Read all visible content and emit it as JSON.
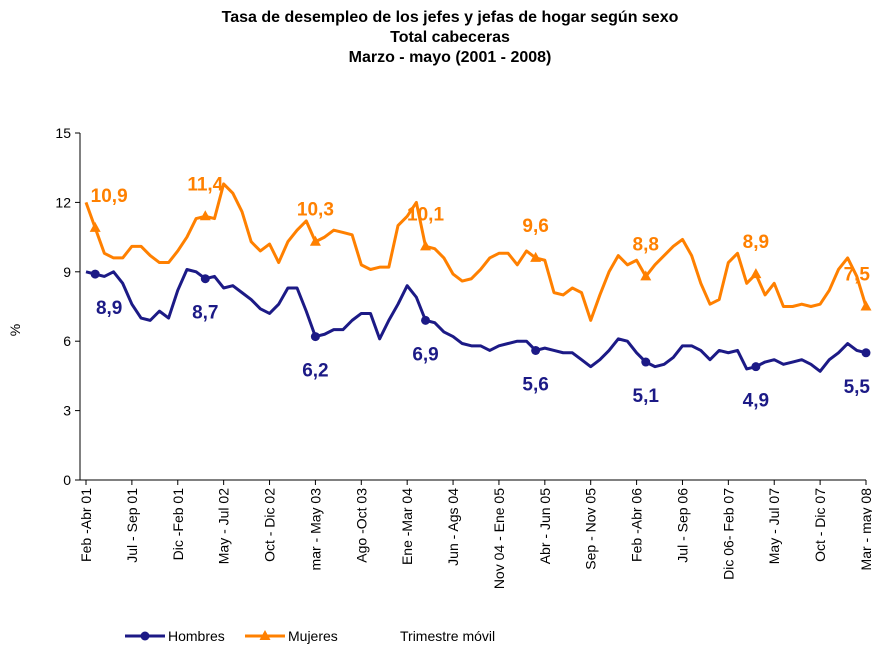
{
  "chart_data": {
    "type": "line",
    "title": [
      "Tasa de desempleo de los jefes y jefas de hogar según sexo",
      "Total cabeceras",
      "Marzo - mayo (2001 - 2008)"
    ],
    "y_label": "%",
    "x_label": "Trimestre móvil",
    "ylim": [
      0,
      15
    ],
    "yticks": [
      0,
      3,
      6,
      9,
      12,
      15
    ],
    "categories": [
      "Feb -Abr 01",
      null,
      null,
      null,
      null,
      "Jul - Sep 01",
      null,
      null,
      null,
      null,
      "Dic -Feb 01",
      null,
      null,
      null,
      null,
      "May - Jul 02",
      null,
      null,
      null,
      null,
      "Oct - Dic 02",
      null,
      null,
      null,
      null,
      "mar - May 03",
      null,
      null,
      null,
      null,
      "Ago -Oct 03",
      null,
      null,
      null,
      null,
      "Ene -Mar 04",
      null,
      null,
      null,
      null,
      "Jun - Ags 04",
      null,
      null,
      null,
      null,
      "Nov 04 - Ene 05",
      null,
      null,
      null,
      null,
      "Abr - Jun 05",
      null,
      null,
      null,
      null,
      "Sep - Nov 05",
      null,
      null,
      null,
      null,
      "Feb -Abr 06",
      null,
      null,
      null,
      null,
      "Jul - Sep 06",
      null,
      null,
      null,
      null,
      "Dic  06- Feb 07",
      null,
      null,
      null,
      null,
      "May - Jul 07",
      null,
      null,
      null,
      null,
      "Oct - Dic 07",
      null,
      null,
      null,
      null,
      "Mar - may 08"
    ],
    "series": [
      {
        "name": "Hombres",
        "color": "#1c1a86",
        "marker": "circle",
        "values": [
          9.0,
          8.9,
          8.8,
          9.0,
          8.5,
          7.6,
          7.0,
          6.9,
          7.3,
          7.0,
          8.2,
          9.1,
          9.0,
          8.7,
          8.8,
          8.3,
          8.4,
          8.1,
          7.8,
          7.4,
          7.2,
          7.6,
          8.3,
          8.3,
          7.3,
          6.2,
          6.3,
          6.5,
          6.5,
          6.9,
          7.2,
          7.2,
          6.1,
          6.9,
          7.6,
          8.4,
          7.9,
          6.9,
          6.8,
          6.4,
          6.2,
          5.9,
          5.8,
          5.8,
          5.6,
          5.8,
          5.9,
          6.0,
          6.0,
          5.6,
          5.7,
          5.6,
          5.5,
          5.5,
          5.2,
          4.9,
          5.2,
          5.6,
          6.1,
          6.0,
          5.5,
          5.1,
          4.9,
          5.0,
          5.3,
          5.8,
          5.8,
          5.6,
          5.2,
          5.6,
          5.5,
          5.6,
          4.8,
          4.9,
          5.1,
          5.2,
          5.0,
          5.1,
          5.2,
          5.0,
          4.7,
          5.2,
          5.5,
          5.9,
          5.6,
          5.5
        ],
        "value_labels": [
          null,
          "8,9",
          null,
          null,
          null,
          null,
          null,
          null,
          null,
          null,
          null,
          null,
          null,
          "8,7",
          null,
          null,
          null,
          null,
          null,
          null,
          null,
          null,
          null,
          null,
          null,
          "6,2",
          null,
          null,
          null,
          null,
          null,
          null,
          null,
          null,
          null,
          null,
          null,
          "6,9",
          null,
          null,
          null,
          null,
          null,
          null,
          null,
          null,
          null,
          null,
          null,
          "5,6",
          null,
          null,
          null,
          null,
          null,
          null,
          null,
          null,
          null,
          null,
          null,
          "5,1",
          null,
          null,
          null,
          null,
          null,
          null,
          null,
          null,
          null,
          null,
          null,
          "4,9",
          null,
          null,
          null,
          null,
          null,
          null,
          null,
          null,
          null,
          null,
          null,
          "5,5"
        ]
      },
      {
        "name": "Mujeres",
        "color": "#ff8000",
        "marker": "triangle",
        "values": [
          12.0,
          10.9,
          9.8,
          9.6,
          9.6,
          10.1,
          10.1,
          9.7,
          9.4,
          9.4,
          9.9,
          10.5,
          11.3,
          11.4,
          11.3,
          12.8,
          12.4,
          11.6,
          10.3,
          9.9,
          10.2,
          9.4,
          10.3,
          10.8,
          11.2,
          10.3,
          10.5,
          10.8,
          10.7,
          10.6,
          9.3,
          9.1,
          9.2,
          9.2,
          11.0,
          11.4,
          12.0,
          10.1,
          10.0,
          9.6,
          8.9,
          8.6,
          8.7,
          9.1,
          9.6,
          9.8,
          9.8,
          9.3,
          9.9,
          9.6,
          9.5,
          8.1,
          8.0,
          8.3,
          8.1,
          6.9,
          8.0,
          9.0,
          9.7,
          9.3,
          9.5,
          8.8,
          9.3,
          9.7,
          10.1,
          10.4,
          9.7,
          8.5,
          7.6,
          7.8,
          9.4,
          9.8,
          8.5,
          8.9,
          8.0,
          8.5,
          7.5,
          7.5,
          7.6,
          7.5,
          7.6,
          8.2,
          9.1,
          9.6,
          8.8,
          7.5
        ],
        "value_labels": [
          null,
          "10,9",
          null,
          null,
          null,
          null,
          null,
          null,
          null,
          null,
          null,
          null,
          null,
          "11,4",
          null,
          null,
          null,
          null,
          null,
          null,
          null,
          null,
          null,
          null,
          null,
          "10,3",
          null,
          null,
          null,
          null,
          null,
          null,
          null,
          null,
          null,
          null,
          null,
          "10,1",
          null,
          null,
          null,
          null,
          null,
          null,
          null,
          null,
          null,
          null,
          null,
          "9,6",
          null,
          null,
          null,
          null,
          null,
          null,
          null,
          null,
          null,
          null,
          null,
          "8,8",
          null,
          null,
          null,
          null,
          null,
          null,
          null,
          null,
          null,
          null,
          null,
          "8,9",
          null,
          null,
          null,
          null,
          null,
          null,
          null,
          null,
          null,
          null,
          null,
          "7,5"
        ]
      }
    ]
  }
}
